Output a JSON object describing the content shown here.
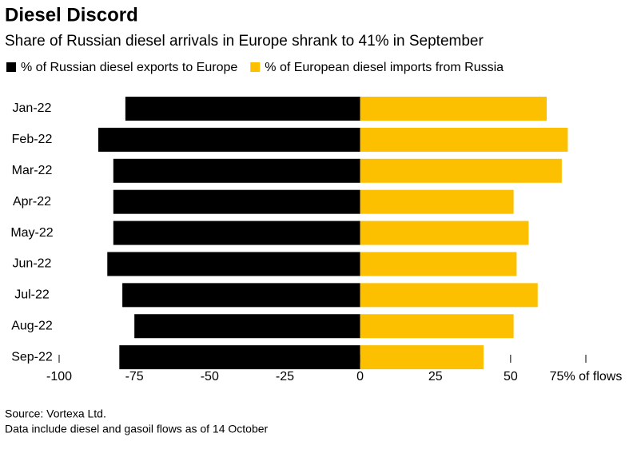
{
  "chart_data": {
    "type": "diverging-bar",
    "title": "Diesel Discord",
    "subtitle": "Share of Russian diesel arrivals in Europe shrank to 41% in September",
    "categories": [
      "Jan-22",
      "Feb-22",
      "Mar-22",
      "Apr-22",
      "May-22",
      "Jun-22",
      "Jul-22",
      "Aug-22",
      "Sep-22"
    ],
    "series": [
      {
        "name": "% of Russian diesel exports to Europe",
        "color": "#000000",
        "values": [
          -78,
          -87,
          -82,
          -82,
          -82,
          -84,
          -79,
          -75,
          -80
        ]
      },
      {
        "name": "% of European diesel imports from Russia",
        "color": "#fcc000",
        "values": [
          62,
          69,
          67,
          51,
          56,
          52,
          59,
          51,
          41
        ]
      }
    ],
    "xlim": [
      -100,
      75
    ],
    "xticks": [
      -100,
      -75,
      -50,
      -25,
      0,
      25,
      50,
      {
        "value": 75,
        "label": "75% of flows"
      }
    ],
    "legend": "top-left",
    "source": "Source: Vortexa Ltd.",
    "note": "Data include diesel and gasoil flows as of 14 October"
  }
}
